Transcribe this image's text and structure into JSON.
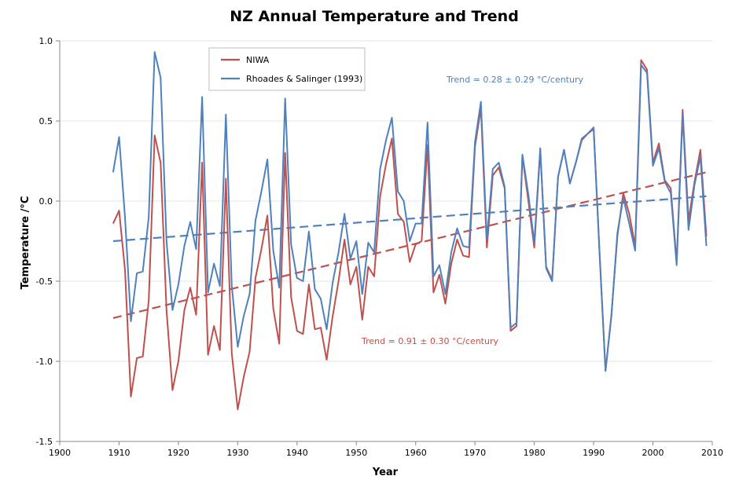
{
  "chart_data": {
    "type": "line",
    "title": "NZ Annual Temperature and Trend",
    "xlabel": "Year",
    "ylabel": "Temperature /°C",
    "xlim": [
      1900,
      2010
    ],
    "ylim": [
      -1.5,
      1.0
    ],
    "x_ticks": [
      "1900",
      "1910",
      "1920",
      "1930",
      "1940",
      "1950",
      "1960",
      "1970",
      "1980",
      "1990",
      "2000",
      "2010"
    ],
    "y_ticks": [
      "1.0",
      "0.5",
      "0.0",
      "-0.5",
      "-1.0",
      "-1.5"
    ],
    "grid": "horizontal",
    "legend_position": "top-left",
    "x": [
      1909,
      1910,
      1911,
      1912,
      1913,
      1914,
      1915,
      1916,
      1917,
      1918,
      1919,
      1920,
      1921,
      1922,
      1923,
      1924,
      1925,
      1926,
      1927,
      1928,
      1929,
      1930,
      1931,
      1932,
      1933,
      1934,
      1935,
      1936,
      1937,
      1938,
      1939,
      1940,
      1941,
      1942,
      1943,
      1944,
      1945,
      1946,
      1947,
      1948,
      1949,
      1950,
      1951,
      1952,
      1953,
      1954,
      1955,
      1956,
      1957,
      1958,
      1959,
      1960,
      1961,
      1962,
      1963,
      1964,
      1965,
      1966,
      1967,
      1968,
      1969,
      1970,
      1971,
      1972,
      1973,
      1974,
      1975,
      1976,
      1977,
      1978,
      1979,
      1980,
      1981,
      1982,
      1983,
      1984,
      1985,
      1986,
      1987,
      1988,
      1989,
      1990,
      1991,
      1992,
      1993,
      1994,
      1995,
      1996,
      1997,
      1998,
      1999,
      2000,
      2001,
      2002,
      2003,
      2004,
      2005,
      2006,
      2007,
      2008,
      2009
    ],
    "series": [
      {
        "name": "NIWA",
        "color": "#c0504d",
        "values": [
          -0.14,
          -0.06,
          -0.43,
          -1.22,
          -0.98,
          -0.97,
          -0.62,
          0.41,
          0.24,
          -0.68,
          -1.18,
          -1.0,
          -0.68,
          -0.54,
          -0.71,
          0.24,
          -0.96,
          -0.78,
          -0.93,
          0.14,
          -0.95,
          -1.3,
          -1.1,
          -0.94,
          -0.48,
          -0.3,
          -0.09,
          -0.67,
          -0.89,
          0.3,
          -0.6,
          -0.81,
          -0.83,
          -0.52,
          -0.8,
          -0.79,
          -0.99,
          -0.72,
          -0.5,
          -0.24,
          -0.52,
          -0.41,
          -0.74,
          -0.41,
          -0.47,
          0.03,
          0.23,
          0.39,
          -0.08,
          -0.13,
          -0.38,
          -0.27,
          -0.25,
          0.35,
          -0.57,
          -0.46,
          -0.64,
          -0.39,
          -0.24,
          -0.34,
          -0.35,
          0.34,
          0.58,
          -0.29,
          0.16,
          0.21,
          0.08,
          -0.81,
          -0.78,
          0.28,
          0.0,
          -0.29,
          0.32,
          -0.41,
          -0.49,
          0.15,
          0.32,
          0.11,
          0.24,
          0.38,
          0.42,
          0.45,
          -0.32,
          -1.06,
          -0.71,
          -0.22,
          0.05,
          -0.08,
          -0.28,
          0.88,
          0.82,
          0.24,
          0.36,
          0.13,
          0.08,
          -0.38,
          0.57,
          -0.12,
          0.12,
          0.32,
          -0.22
        ]
      },
      {
        "name": "Rhoades & Salinger (1993)",
        "color": "#4f81bd",
        "values": [
          0.18,
          0.4,
          -0.1,
          -0.75,
          -0.45,
          -0.44,
          -0.1,
          0.93,
          0.77,
          -0.25,
          -0.68,
          -0.52,
          -0.28,
          -0.13,
          -0.3,
          0.65,
          -0.57,
          -0.39,
          -0.53,
          0.54,
          -0.53,
          -0.91,
          -0.72,
          -0.58,
          -0.12,
          0.06,
          0.26,
          -0.31,
          -0.54,
          0.64,
          -0.27,
          -0.48,
          -0.5,
          -0.19,
          -0.55,
          -0.61,
          -0.8,
          -0.51,
          -0.32,
          -0.08,
          -0.36,
          -0.25,
          -0.58,
          -0.26,
          -0.32,
          0.2,
          0.38,
          0.52,
          0.06,
          0.0,
          -0.25,
          -0.14,
          -0.14,
          0.49,
          -0.47,
          -0.4,
          -0.58,
          -0.32,
          -0.17,
          -0.28,
          -0.29,
          0.37,
          0.62,
          -0.24,
          0.2,
          0.24,
          0.09,
          -0.79,
          -0.76,
          0.29,
          0.04,
          -0.26,
          0.33,
          -0.42,
          -0.5,
          0.15,
          0.32,
          0.11,
          0.24,
          0.39,
          0.42,
          0.46,
          -0.32,
          -1.06,
          -0.72,
          -0.2,
          0.02,
          -0.14,
          -0.31,
          0.85,
          0.8,
          0.22,
          0.33,
          0.12,
          0.05,
          -0.4,
          0.54,
          -0.18,
          0.1,
          0.28,
          -0.28
        ]
      }
    ],
    "trends": [
      {
        "series": "NIWA",
        "color": "#c0504d",
        "x": [
          1909,
          2009
        ],
        "y": [
          -0.73,
          0.18
        ],
        "label": "Trend = 0.91 ± 0.30 °C/century"
      },
      {
        "series": "Rhoades & Salinger (1993)",
        "color": "#4f81bd",
        "x": [
          1909,
          2009
        ],
        "y": [
          -0.25,
          0.03
        ],
        "label": "Trend = 0.28 ± 0.29 °C/century"
      }
    ]
  }
}
